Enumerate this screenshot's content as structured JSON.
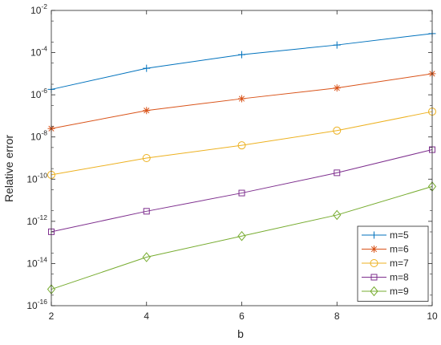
{
  "chart_data": {
    "type": "line",
    "title": "",
    "xlabel": "b",
    "ylabel": "Relative error",
    "x": [
      2,
      4,
      6,
      8,
      10
    ],
    "xlim": [
      2,
      10
    ],
    "xticks": [
      2,
      4,
      6,
      8,
      10
    ],
    "yscale": "log",
    "ylim": [
      1e-16,
      0.01
    ],
    "yticks": [
      {
        "base": "10",
        "exp": "-16",
        "value": 1e-16
      },
      {
        "base": "10",
        "exp": "-14",
        "value": 1e-14
      },
      {
        "base": "10",
        "exp": "-12",
        "value": 1e-12
      },
      {
        "base": "10",
        "exp": "-10",
        "value": 1e-10
      },
      {
        "base": "10",
        "exp": "-8",
        "value": 1e-08
      },
      {
        "base": "10",
        "exp": "-6",
        "value": 1e-06
      },
      {
        "base": "10",
        "exp": "-4",
        "value": 0.0001
      },
      {
        "base": "10",
        "exp": "-2",
        "value": 0.01
      }
    ],
    "grid": false,
    "legend": "bottom-right",
    "series": [
      {
        "name": "m=5",
        "color": "#0072BD",
        "marker": "plus",
        "values": [
          1.8e-06,
          1.8e-05,
          8e-05,
          0.00023,
          0.0008
        ]
      },
      {
        "name": "m=6",
        "color": "#D95319",
        "marker": "star",
        "values": [
          2.5e-08,
          1.8e-07,
          6.5e-07,
          2.1e-06,
          1e-05
        ]
      },
      {
        "name": "m=7",
        "color": "#EDB120",
        "marker": "circle",
        "values": [
          1.6e-10,
          1e-09,
          4e-09,
          2e-08,
          1.6e-07
        ]
      },
      {
        "name": "m=8",
        "color": "#7E2F8E",
        "marker": "square",
        "values": [
          3.2e-13,
          3e-12,
          2.2e-11,
          2e-10,
          2.5e-09
        ]
      },
      {
        "name": "m=9",
        "color": "#77AC30",
        "marker": "diamond",
        "values": [
          6e-16,
          2e-14,
          2e-13,
          2e-12,
          4.5e-11
        ]
      }
    ]
  }
}
